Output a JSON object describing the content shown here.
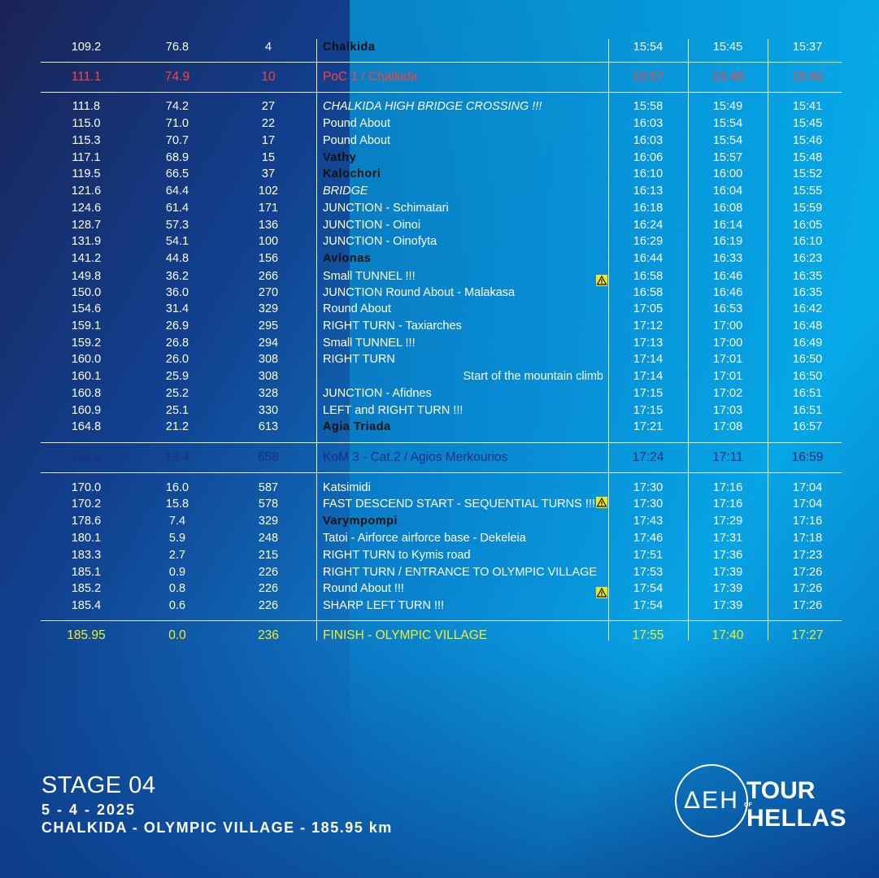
{
  "rows": [
    {
      "km": "109.2",
      "rem": "76.8",
      "alt": "4",
      "loc": "Chalkida",
      "t1": "15:54",
      "t2": "15:45",
      "t3": "15:37",
      "style": "bold"
    },
    {
      "km": "111.1",
      "rem": "74.9",
      "alt": "10",
      "loc": "PoC 1 / Chalkida",
      "t1": "15:57",
      "t2": "15:48",
      "t3": "15:40",
      "style": "red"
    },
    {
      "km": "111.8",
      "rem": "74.2",
      "alt": "27",
      "loc": "CHALKIDA HIGH BRIDGE CROSSING !!!",
      "t1": "15:58",
      "t2": "15:49",
      "t3": "15:41",
      "style": "italic"
    },
    {
      "km": "115.0",
      "rem": "71.0",
      "alt": "22",
      "loc": "Pound About",
      "t1": "16:03",
      "t2": "15:54",
      "t3": "15:45",
      "style": ""
    },
    {
      "km": "115.3",
      "rem": "70.7",
      "alt": "17",
      "loc": "Pound About",
      "t1": "16:03",
      "t2": "15:54",
      "t3": "15:46",
      "style": ""
    },
    {
      "km": "117.1",
      "rem": "68.9",
      "alt": "15",
      "loc": "Vathy",
      "t1": "16:06",
      "t2": "15:57",
      "t3": "15:48",
      "style": "bold"
    },
    {
      "km": "119.5",
      "rem": "66.5",
      "alt": "37",
      "loc": "Kalochori",
      "t1": "16:10",
      "t2": "16:00",
      "t3": "15:52",
      "style": "bold"
    },
    {
      "km": "121.6",
      "rem": "64.4",
      "alt": "102",
      "loc": "BRIDGE",
      "t1": "16:13",
      "t2": "16:04",
      "t3": "15:55",
      "style": "italic"
    },
    {
      "km": "124.6",
      "rem": "61.4",
      "alt": "171",
      "loc": "JUNCTION - Schimatari",
      "t1": "16:18",
      "t2": "16:08",
      "t3": "15:59",
      "style": ""
    },
    {
      "km": "128.7",
      "rem": "57.3",
      "alt": "136",
      "loc": "JUNCTION - Oinoi",
      "t1": "16:24",
      "t2": "16:14",
      "t3": "16:05",
      "style": ""
    },
    {
      "km": "131.9",
      "rem": "54.1",
      "alt": "100",
      "loc": "JUNCTION - Oinofyta",
      "t1": "16:29",
      "t2": "16:19",
      "t3": "16:10",
      "style": ""
    },
    {
      "km": "141.2",
      "rem": "44.8",
      "alt": "156",
      "loc": "Avlonas",
      "t1": "16:44",
      "t2": "16:33",
      "t3": "16:23",
      "style": "bold"
    },
    {
      "km": "149.8",
      "rem": "36.2",
      "alt": "266",
      "loc": "Small TUNNEL !!!",
      "t1": "16:58",
      "t2": "16:46",
      "t3": "16:35",
      "style": "",
      "warn": true
    },
    {
      "km": "150.0",
      "rem": "36.0",
      "alt": "270",
      "loc": "JUNCTION Round About - Malakasa",
      "t1": "16:58",
      "t2": "16:46",
      "t3": "16:35",
      "style": ""
    },
    {
      "km": "154.6",
      "rem": "31.4",
      "alt": "329",
      "loc": "Round About",
      "t1": "17:05",
      "t2": "16:53",
      "t3": "16:42",
      "style": ""
    },
    {
      "km": "159.1",
      "rem": "26.9",
      "alt": "295",
      "loc": "RIGHT TURN - Taxiarches",
      "t1": "17:12",
      "t2": "17:00",
      "t3": "16:48",
      "style": ""
    },
    {
      "km": "159.2",
      "rem": "26.8",
      "alt": "294",
      "loc": "Small TUNNEL !!!",
      "t1": "17:13",
      "t2": "17:00",
      "t3": "16:49",
      "style": ""
    },
    {
      "km": "160.0",
      "rem": "26.0",
      "alt": "308",
      "loc": "RIGHT TURN",
      "t1": "17:14",
      "t2": "17:01",
      "t3": "16:50",
      "style": ""
    },
    {
      "km": "160.1",
      "rem": "25.9",
      "alt": "308",
      "loc": "Start of the mountain climb",
      "t1": "17:14",
      "t2": "17:01",
      "t3": "16:50",
      "style": "right"
    },
    {
      "km": "160.8",
      "rem": "25.2",
      "alt": "328",
      "loc": "JUNCTION - Afidnes",
      "t1": "17:15",
      "t2": "17:02",
      "t3": "16:51",
      "style": ""
    },
    {
      "km": "160.9",
      "rem": "25.1",
      "alt": "330",
      "loc": "LEFT and RIGHT TURN !!!",
      "t1": "17:15",
      "t2": "17:03",
      "t3": "16:51",
      "style": ""
    },
    {
      "km": "164.8",
      "rem": "21.2",
      "alt": "613",
      "loc": "Agia Triada",
      "t1": "17:21",
      "t2": "17:08",
      "t3": "16:57",
      "style": "bold"
    },
    {
      "km": "166.6",
      "rem": "19.4",
      "alt": "658",
      "loc": "KoM 3 - Cat.2 / Agios Merkourios",
      "t1": "17:24",
      "t2": "17:11",
      "t3": "16:59",
      "style": "dark"
    },
    {
      "km": "170.0",
      "rem": "16.0",
      "alt": "587",
      "loc": "Katsimidi",
      "t1": "17:30",
      "t2": "17:16",
      "t3": "17:04",
      "style": ""
    },
    {
      "km": "170.2",
      "rem": "15.8",
      "alt": "578",
      "loc": "FAST DESCEND START - SEQUENTIAL TURNS !!!",
      "t1": "17:30",
      "t2": "17:16",
      "t3": "17:04",
      "style": "",
      "warn": true
    },
    {
      "km": "178.6",
      "rem": "7.4",
      "alt": "329",
      "loc": "Varympompi",
      "t1": "17:43",
      "t2": "17:29",
      "t3": "17:16",
      "style": "bold"
    },
    {
      "km": "180.1",
      "rem": "5.9",
      "alt": "248",
      "loc": "Tatoi - Airforce airforce base - Dekeleia",
      "t1": "17:46",
      "t2": "17:31",
      "t3": "17:18",
      "style": ""
    },
    {
      "km": "183.3",
      "rem": "2.7",
      "alt": "215",
      "loc": "RIGHT TURN to Kymis road",
      "t1": "17:51",
      "t2": "17:36",
      "t3": "17:23",
      "style": ""
    },
    {
      "km": "185.1",
      "rem": "0.9",
      "alt": "226",
      "loc": "RIGHT TURN / ENTRANCE TO OLYMPIC VILLAGE",
      "t1": "17:53",
      "t2": "17:39",
      "t3": "17:26",
      "style": ""
    },
    {
      "km": "185.2",
      "rem": "0.8",
      "alt": "226",
      "loc": "Round About !!!",
      "t1": "17:54",
      "t2": "17:39",
      "t3": "17:26",
      "style": "",
      "warn": true
    },
    {
      "km": "185.4",
      "rem": "0.6",
      "alt": "226",
      "loc": "SHARP LEFT TURN !!!",
      "t1": "17:54",
      "t2": "17:39",
      "t3": "17:26",
      "style": ""
    },
    {
      "km": "185.95",
      "rem": "0.0",
      "alt": "236",
      "loc": "FINISH - OLYMPIC VILLAGE",
      "t1": "17:55",
      "t2": "17:40",
      "t3": "17:27",
      "style": "yel"
    }
  ],
  "footer": {
    "stage": "STAGE 04",
    "date": "5 - 4 - 2025",
    "route": "CHALKIDA - OLYMPIC VILLAGE - 185.95 km"
  },
  "logos": {
    "deh": "ΔΕΗ",
    "tour": "TOUR",
    "of": "OF",
    "hellas": "HELLAS"
  }
}
